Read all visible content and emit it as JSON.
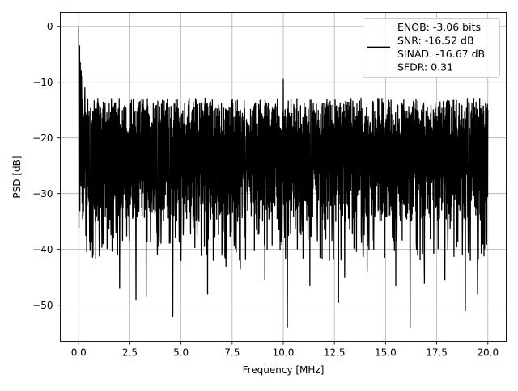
{
  "chart_data": {
    "type": "line",
    "title": "",
    "xlabel": "Frequency [MHz]",
    "ylabel": "PSD [dB]",
    "xlim": [
      -0.9,
      20.9
    ],
    "ylim": [
      -56.5,
      2.5
    ],
    "grid": true,
    "legend_position": "top-right",
    "x_ticks": [
      0.0,
      2.5,
      5.0,
      7.5,
      10.0,
      12.5,
      15.0,
      17.5,
      20.0
    ],
    "x_tick_labels": [
      "0.0",
      "2.5",
      "5.0",
      "7.5",
      "10.0",
      "12.5",
      "15.0",
      "17.5",
      "20.0"
    ],
    "y_ticks": [
      0,
      -10,
      -20,
      -30,
      -40,
      -50
    ],
    "y_tick_labels": [
      "0",
      "−10",
      "−20",
      "−30",
      "−40",
      "−50"
    ],
    "line_color": "#000000",
    "series": [
      {
        "legend_lines": [
          "ENOB: -3.06 bits",
          "SNR: -16.52 dB",
          "SINAD: -16.67 dB",
          "SFDR: 0.31"
        ],
        "x_range": [
          0.0,
          20.0
        ],
        "noise_upper_level": -16,
        "noise_lower_level": -32,
        "peaks": [
          {
            "x": 0.0,
            "y": 0.0
          },
          {
            "x": 0.04,
            "y": -3.5
          },
          {
            "x": 0.08,
            "y": -6.5
          },
          {
            "x": 0.12,
            "y": -8.0
          },
          {
            "x": 0.2,
            "y": -9.0
          },
          {
            "x": 0.3,
            "y": -11.0
          },
          {
            "x": 10.0,
            "y": -9.5
          }
        ],
        "dips": [
          {
            "x": 0.1,
            "y": -28.5
          },
          {
            "x": 0.2,
            "y": -31.5
          },
          {
            "x": 0.35,
            "y": -37.5
          },
          {
            "x": 0.7,
            "y": -41.0
          },
          {
            "x": 1.0,
            "y": -38.0
          },
          {
            "x": 2.0,
            "y": -47.0
          },
          {
            "x": 2.8,
            "y": -49.0
          },
          {
            "x": 3.3,
            "y": -48.5
          },
          {
            "x": 4.6,
            "y": -52.0
          },
          {
            "x": 5.0,
            "y": -42.0
          },
          {
            "x": 6.3,
            "y": -48.0
          },
          {
            "x": 7.2,
            "y": -43.0
          },
          {
            "x": 7.9,
            "y": -43.5
          },
          {
            "x": 9.1,
            "y": -45.5
          },
          {
            "x": 10.2,
            "y": -54.0
          },
          {
            "x": 11.3,
            "y": -46.5
          },
          {
            "x": 12.7,
            "y": -49.5
          },
          {
            "x": 13.0,
            "y": -45.0
          },
          {
            "x": 14.1,
            "y": -44.0
          },
          {
            "x": 15.5,
            "y": -46.5
          },
          {
            "x": 16.2,
            "y": -54.0
          },
          {
            "x": 16.9,
            "y": -46.0
          },
          {
            "x": 17.9,
            "y": -45.5
          },
          {
            "x": 18.9,
            "y": -51.0
          },
          {
            "x": 19.5,
            "y": -48.0
          }
        ]
      }
    ]
  }
}
